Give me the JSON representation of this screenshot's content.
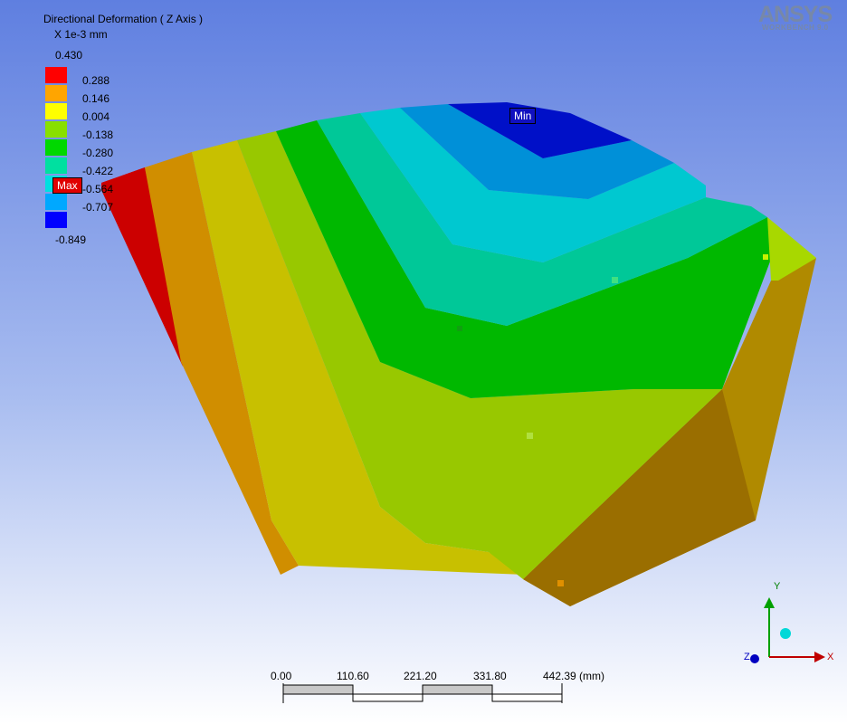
{
  "result": {
    "title": "Directional Deformation ( Z Axis )",
    "unit": "X 1e-3 mm"
  },
  "legend": {
    "values": [
      "0.430",
      "0.288",
      "0.146",
      "0.004",
      "-0.138",
      "-0.280",
      "-0.422",
      "-0.564",
      "-0.707",
      "-0.849"
    ],
    "colors": [
      "#ff0000",
      "#ffa500",
      "#ffff00",
      "#88e000",
      "#00d800",
      "#00e0a0",
      "#00e0e0",
      "#00a8ff",
      "#0000ff"
    ]
  },
  "probes": {
    "min_label": "Min",
    "max_label": "Max"
  },
  "logo": {
    "name": "ANSYS",
    "subtitle": "WORKBENCH 9.0"
  },
  "scale_bar": {
    "ticks": [
      "0.00",
      "110.60",
      "221.20",
      "331.80",
      "442.39 (mm)"
    ]
  },
  "triad": {
    "x": "X",
    "y": "Y",
    "z": "Z"
  }
}
